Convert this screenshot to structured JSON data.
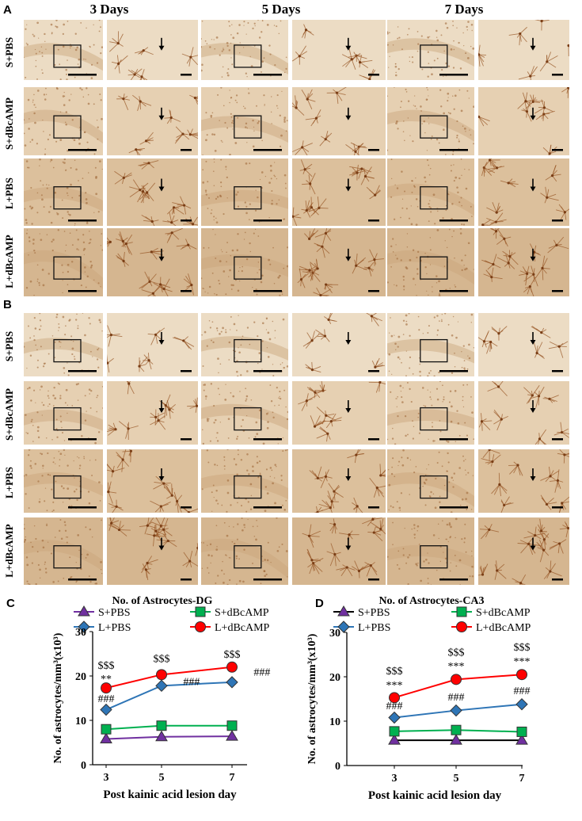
{
  "figure": {
    "panel_letters": [
      "A",
      "B",
      "C",
      "D"
    ],
    "columns": [
      "3 Days",
      "5 Days",
      "7 Days"
    ],
    "rows": [
      "S+PBS",
      "S+dBcAMP",
      "L+PBS",
      "L+dBcAMP"
    ]
  },
  "chart_data": [
    {
      "type": "line",
      "title": "No. of Astrocytes-DG",
      "xlabel": "Post kainic acid lesion day",
      "ylabel": "No. of astrocytes/mm³(x10³)",
      "x": [
        3,
        5,
        7
      ],
      "ylim": [
        0,
        30
      ],
      "yticks": [
        0,
        10,
        20,
        30
      ],
      "legend": "top",
      "series": [
        {
          "name": "S+PBS",
          "color": "#7030a0",
          "marker": "triangle",
          "values": [
            5.8,
            6.3,
            6.4
          ]
        },
        {
          "name": "S+dBcAMP",
          "color": "#00b050",
          "marker": "square",
          "values": [
            8.0,
            8.8,
            8.8
          ]
        },
        {
          "name": "L+PBS",
          "color": "#2e75b6",
          "marker": "diamond",
          "values": [
            12.4,
            17.8,
            18.6
          ]
        },
        {
          "name": "L+dBcAMP",
          "color": "#ff0000",
          "marker": "circle",
          "values": [
            17.3,
            20.3,
            22.0
          ]
        }
      ],
      "annotations": [
        {
          "text": "$$$",
          "x": 3,
          "y": 22.5
        },
        {
          "text": "**",
          "x": 3,
          "y": 19.5
        },
        {
          "text": "###",
          "x": 3,
          "y": 15.0
        },
        {
          "text": "$$$",
          "x": 5,
          "y": 24.0
        },
        {
          "text": "###",
          "x": 5.85,
          "y": 18.8
        },
        {
          "text": "$$$",
          "x": 7,
          "y": 25.0
        },
        {
          "text": "###",
          "x": 7.85,
          "y": 21.0
        }
      ]
    },
    {
      "type": "line",
      "title": "No. of Astrocytes-CA3",
      "xlabel": "Post kainic acid lesion day",
      "ylabel": "No. of astrocytes/mm³(x10³)",
      "x": [
        3,
        5,
        7
      ],
      "ylim": [
        0,
        30
      ],
      "yticks": [
        0,
        10,
        20,
        30
      ],
      "legend": "top",
      "series": [
        {
          "name": "S+PBS",
          "color": "#000000",
          "marker": "triangle",
          "values": [
            5.7,
            5.7,
            5.7
          ]
        },
        {
          "name": "S+dBcAMP",
          "color": "#00b050",
          "marker": "square",
          "values": [
            7.7,
            8.0,
            7.6
          ]
        },
        {
          "name": "L+PBS",
          "color": "#2e75b6",
          "marker": "diamond",
          "values": [
            10.8,
            12.4,
            13.8
          ]
        },
        {
          "name": "L+dBcAMP",
          "color": "#ff0000",
          "marker": "circle",
          "values": [
            15.3,
            19.4,
            20.5
          ]
        }
      ],
      "annotations": [
        {
          "text": "$$$",
          "x": 3,
          "y": 21.4
        },
        {
          "text": "***",
          "x": 3,
          "y": 18.2
        },
        {
          "text": "###",
          "x": 3,
          "y": 13.6
        },
        {
          "text": "$$$",
          "x": 5,
          "y": 25.6
        },
        {
          "text": "***",
          "x": 5,
          "y": 22.5
        },
        {
          "text": "###",
          "x": 5,
          "y": 15.5
        },
        {
          "text": "$$$",
          "x": 7,
          "y": 26.8
        },
        {
          "text": "***",
          "x": 7,
          "y": 23.6
        },
        {
          "text": "###",
          "x": 7,
          "y": 17.0
        }
      ]
    }
  ]
}
